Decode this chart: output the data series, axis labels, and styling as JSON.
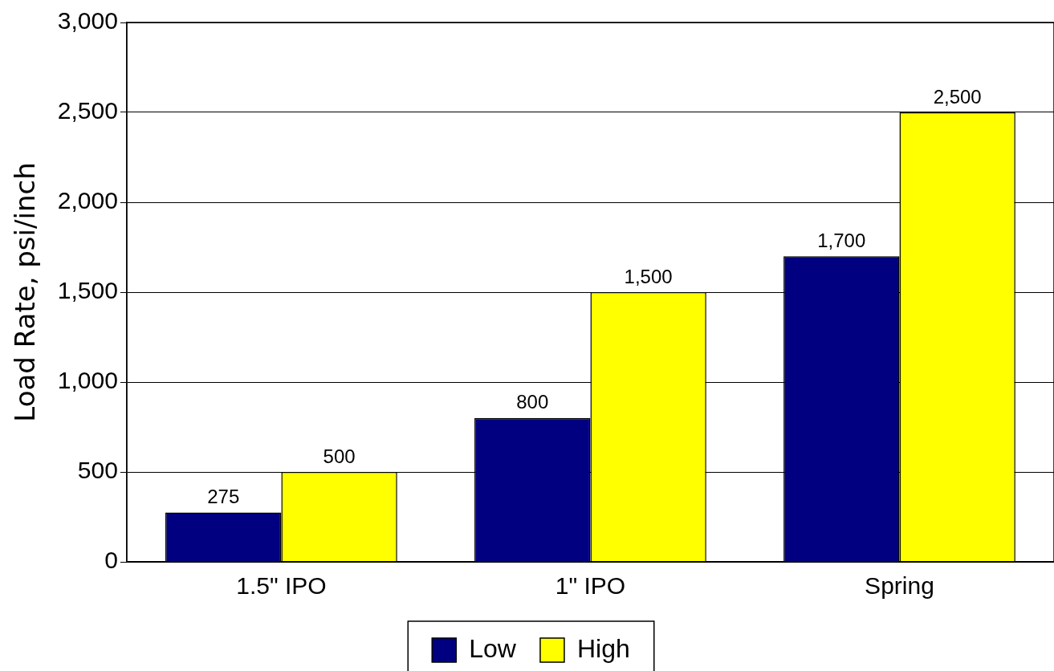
{
  "chart_data": {
    "type": "bar",
    "ylabel": "Load Rate, psi/inch",
    "categories": [
      "1.5\" IPO",
      "1\" IPO",
      "Spring"
    ],
    "series": [
      {
        "name": "Low",
        "color": "#000080",
        "values": [
          275,
          800,
          1700
        ],
        "value_labels": [
          "275",
          "800",
          "1,700"
        ]
      },
      {
        "name": "High",
        "color": "#ffff00",
        "values": [
          500,
          1500,
          2500
        ],
        "value_labels": [
          "500",
          "1,500",
          "2,500"
        ]
      }
    ],
    "ylim": [
      0,
      3000
    ],
    "yticks": [
      0,
      500,
      {
        "value": 1000,
        "label": "1,000"
      },
      {
        "value": 1500,
        "label": "1,500"
      },
      {
        "value": 2000,
        "label": "2,000"
      },
      {
        "value": 2500,
        "label": "2,500"
      },
      {
        "value": 3000,
        "label": "3,000"
      }
    ],
    "grid": "y",
    "legend": "bottom"
  }
}
